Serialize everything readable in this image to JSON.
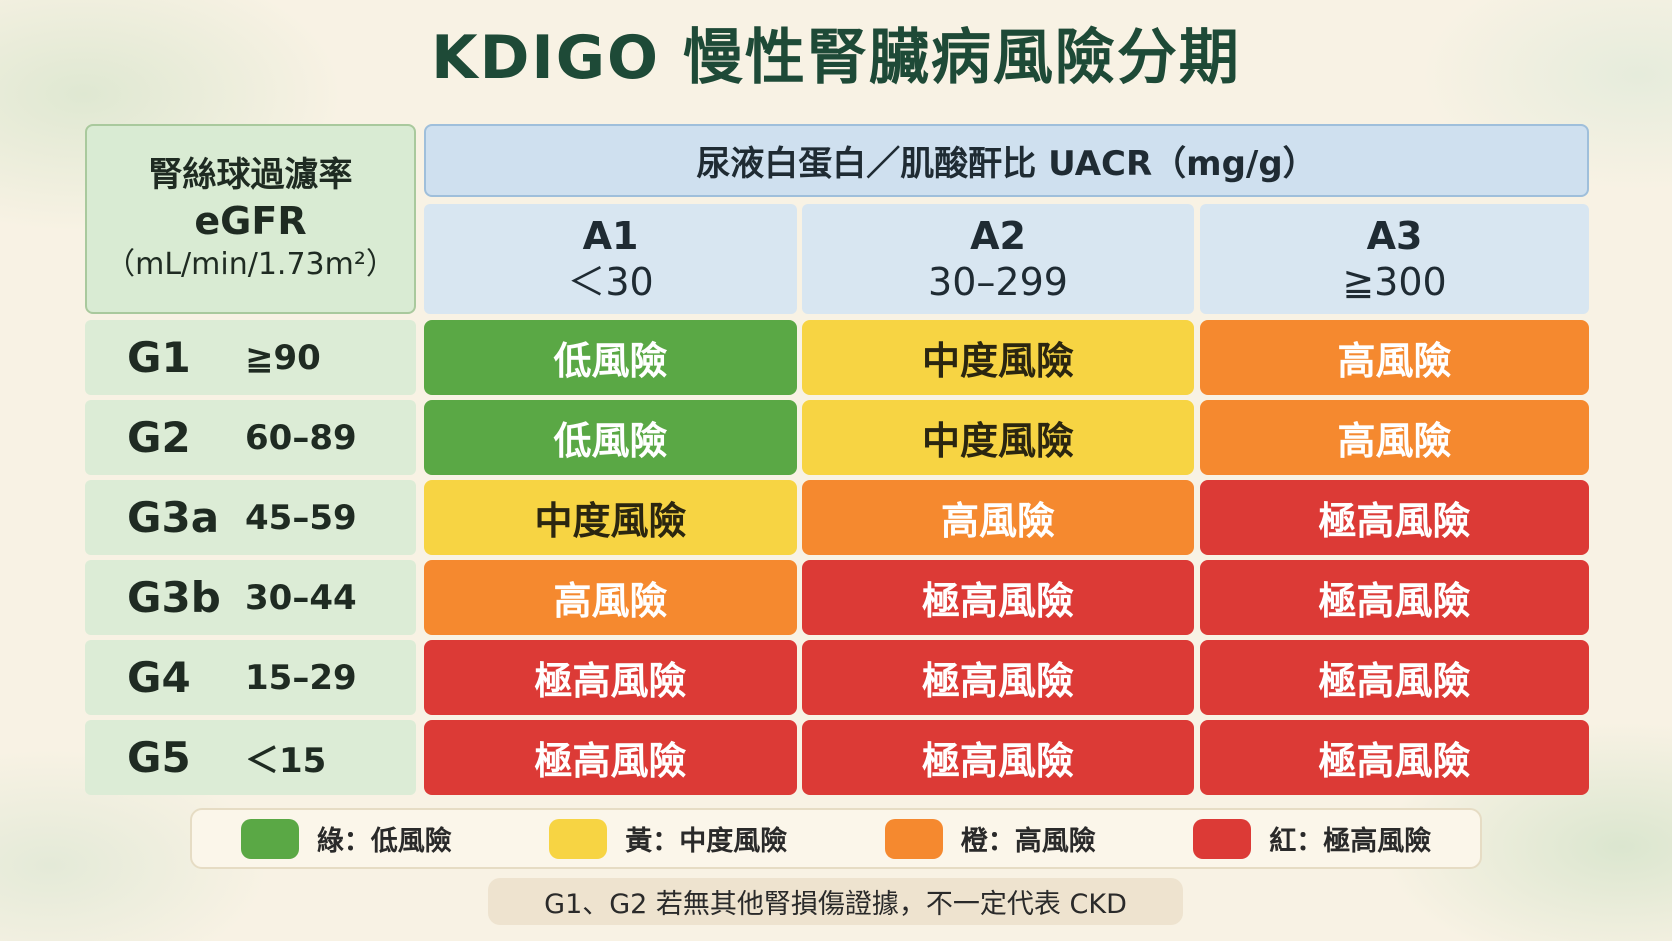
{
  "title": "KDIGO 慢性腎臟病風險分期",
  "egfr_header": [
    "腎絲球過濾率",
    "eGFR",
    "（mL/min/1.73m²）"
  ],
  "uacr_header": "尿液白蛋白／肌酸酐比 UACR（mg/g）",
  "columns": [
    {
      "code": "A1",
      "range": "＜30"
    },
    {
      "code": "A2",
      "range": "30–299"
    },
    {
      "code": "A3",
      "range": "≧300"
    }
  ],
  "rows": [
    {
      "stage": "G1",
      "range": "≧90",
      "cells": [
        {
          "text": "低風險",
          "color": "#5aa845"
        },
        {
          "text": "中度風險",
          "color": "#f7d443"
        },
        {
          "text": "高風險",
          "color": "#f5892f"
        }
      ]
    },
    {
      "stage": "G2",
      "range": "60–89",
      "cells": [
        {
          "text": "低風險",
          "color": "#5aa845"
        },
        {
          "text": "中度風險",
          "color": "#f7d443"
        },
        {
          "text": "高風險",
          "color": "#f5892f"
        }
      ]
    },
    {
      "stage": "G3a",
      "range": "45–59",
      "cells": [
        {
          "text": "中度風險",
          "color": "#f7d443"
        },
        {
          "text": "高風險",
          "color": "#f5892f"
        },
        {
          "text": "極高風險",
          "color": "#dc3a36"
        }
      ]
    },
    {
      "stage": "G3b",
      "range": "30–44",
      "cells": [
        {
          "text": "高風險",
          "color": "#f5892f"
        },
        {
          "text": "極高風險",
          "color": "#dc3a36"
        },
        {
          "text": "極高風險",
          "color": "#dc3a36"
        }
      ]
    },
    {
      "stage": "G4",
      "range": "15–29",
      "cells": [
        {
          "text": "極高風險",
          "color": "#dc3a36"
        },
        {
          "text": "極高風險",
          "color": "#dc3a36"
        },
        {
          "text": "極高風險",
          "color": "#dc3a36"
        }
      ]
    },
    {
      "stage": "G5",
      "range": "＜15",
      "cells": [
        {
          "text": "極高風險",
          "color": "#dc3a36"
        },
        {
          "text": "極高風險",
          "color": "#dc3a36"
        },
        {
          "text": "極高風險",
          "color": "#dc3a36"
        }
      ]
    }
  ],
  "legend": [
    {
      "label": "綠：低風險",
      "color": "#5aa845"
    },
    {
      "label": "黃：中度風險",
      "color": "#f7d443"
    },
    {
      "label": "橙：高風險",
      "color": "#f5892f"
    },
    {
      "label": "紅：極高風險",
      "color": "#dc3a36"
    }
  ],
  "note": "G1、G2 若無其他腎損傷證據，不一定代表 CKD"
}
